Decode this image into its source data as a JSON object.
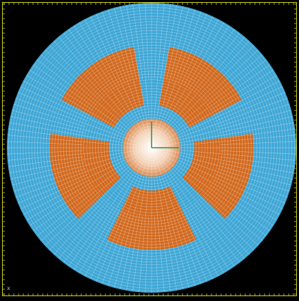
{
  "viewport": {
    "background": "#000000",
    "frame_color": "#d6d61a",
    "axis_corner_label": "x"
  },
  "mesh": {
    "outer_ring_color": "#3fa7d6",
    "fuel_color": "#d2691e",
    "inner_core_color": "#e8b08a",
    "mesh_line_color": "#ffffff",
    "sector_count": 5,
    "axis_triad_color": "#2e8b57"
  }
}
